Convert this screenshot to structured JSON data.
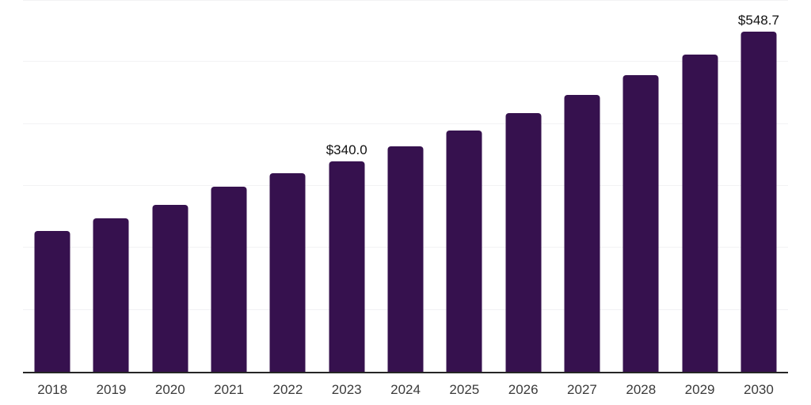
{
  "chart_data": {
    "type": "bar",
    "title": "",
    "xlabel": "",
    "ylabel": "",
    "categories": [
      "2018",
      "2019",
      "2020",
      "2021",
      "2022",
      "2023",
      "2024",
      "2025",
      "2026",
      "2027",
      "2028",
      "2029",
      "2030"
    ],
    "values": [
      227.0,
      247.4,
      269.8,
      299.2,
      320.4,
      340.0,
      364.0,
      389.8,
      417.3,
      446.8,
      478.4,
      512.3,
      548.7
    ],
    "data_labels": {
      "2023": "$340.0",
      "2030": "$548.7"
    },
    "ylim": [
      0,
      600
    ],
    "gridline_interval": 100,
    "grid_visible": true,
    "y_tick_labels_visible": false,
    "legend_position": "none",
    "colors": {
      "bar": "#36114e",
      "gridline": "#f2f2f4",
      "axis_line": "#262626",
      "tick_label": "#3a3a3a",
      "data_label": "#111111",
      "background": "#ffffff"
    }
  }
}
